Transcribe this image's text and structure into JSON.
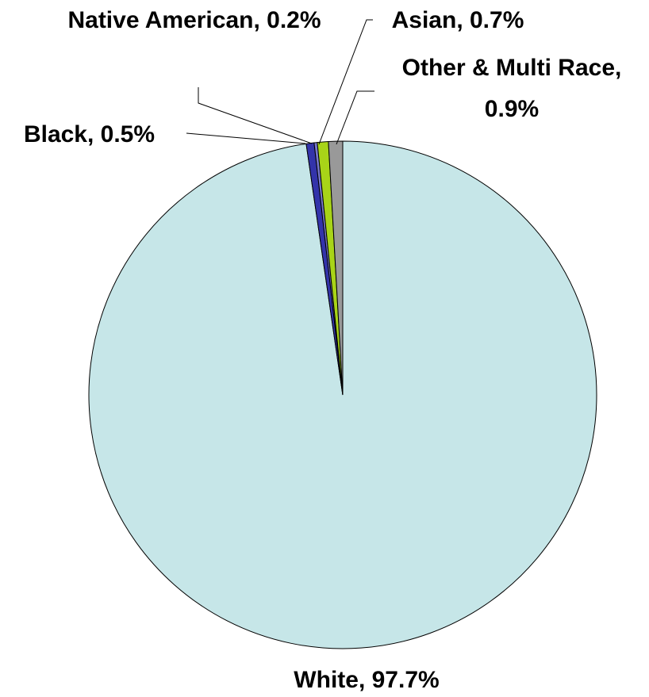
{
  "chart_data": {
    "type": "pie",
    "categories": [
      "White",
      "Black",
      "Native American",
      "Asian",
      "Other & Multi Race"
    ],
    "values": [
      97.7,
      0.5,
      0.2,
      0.7,
      0.9
    ],
    "value_labels": [
      "White, 97.7%",
      "Black, 0.5%",
      "Native American, 0.2%",
      "Asian, 0.7%",
      "Other & Multi Race, 0.9%"
    ],
    "colors": [
      "#c6e6e8",
      "#3333aa",
      "#7777cc",
      "#a8d418",
      "#999999"
    ]
  }
}
